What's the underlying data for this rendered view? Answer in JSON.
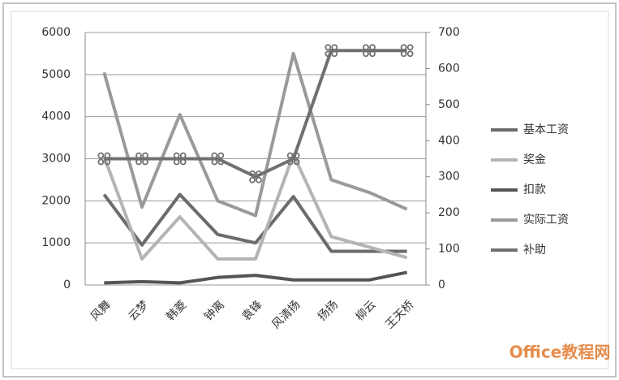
{
  "chart_data": {
    "type": "line",
    "categories": [
      "风舞",
      "云梦",
      "韩菱",
      "钟离",
      "袁锋",
      "风清扬",
      "扬扬",
      "柳云",
      "王天桥"
    ],
    "series": [
      {
        "name": "基本工资",
        "color": "#6b6b6b",
        "values": [
          2150,
          950,
          2150,
          1200,
          1000,
          2100,
          800,
          800,
          800
        ]
      },
      {
        "name": "奖金",
        "color": "#b4b4b4",
        "values": [
          3050,
          620,
          1620,
          620,
          620,
          3100,
          1150,
          900,
          650
        ]
      },
      {
        "name": "扣款",
        "color": "#555555",
        "values": [
          50,
          80,
          50,
          180,
          230,
          120,
          120,
          120,
          300
        ]
      },
      {
        "name": "实际工资",
        "color": "#9a9a9a",
        "values": [
          5050,
          1850,
          4050,
          2000,
          1650,
          5500,
          2500,
          2200,
          1800
        ]
      },
      {
        "name": "补助",
        "color": "#707070",
        "axis": "y2",
        "marker": true,
        "values": [
          350,
          350,
          350,
          350,
          300,
          350,
          650,
          650,
          650
        ]
      }
    ],
    "ylim": [
      0,
      6000
    ],
    "yticks": [
      0,
      1000,
      2000,
      3000,
      4000,
      5000,
      6000
    ],
    "y2lim": [
      0,
      700
    ],
    "y2ticks": [
      0,
      100,
      200,
      300,
      400,
      500,
      600,
      700
    ],
    "grid": true,
    "legend": "right",
    "watermark": "Office教程网"
  }
}
